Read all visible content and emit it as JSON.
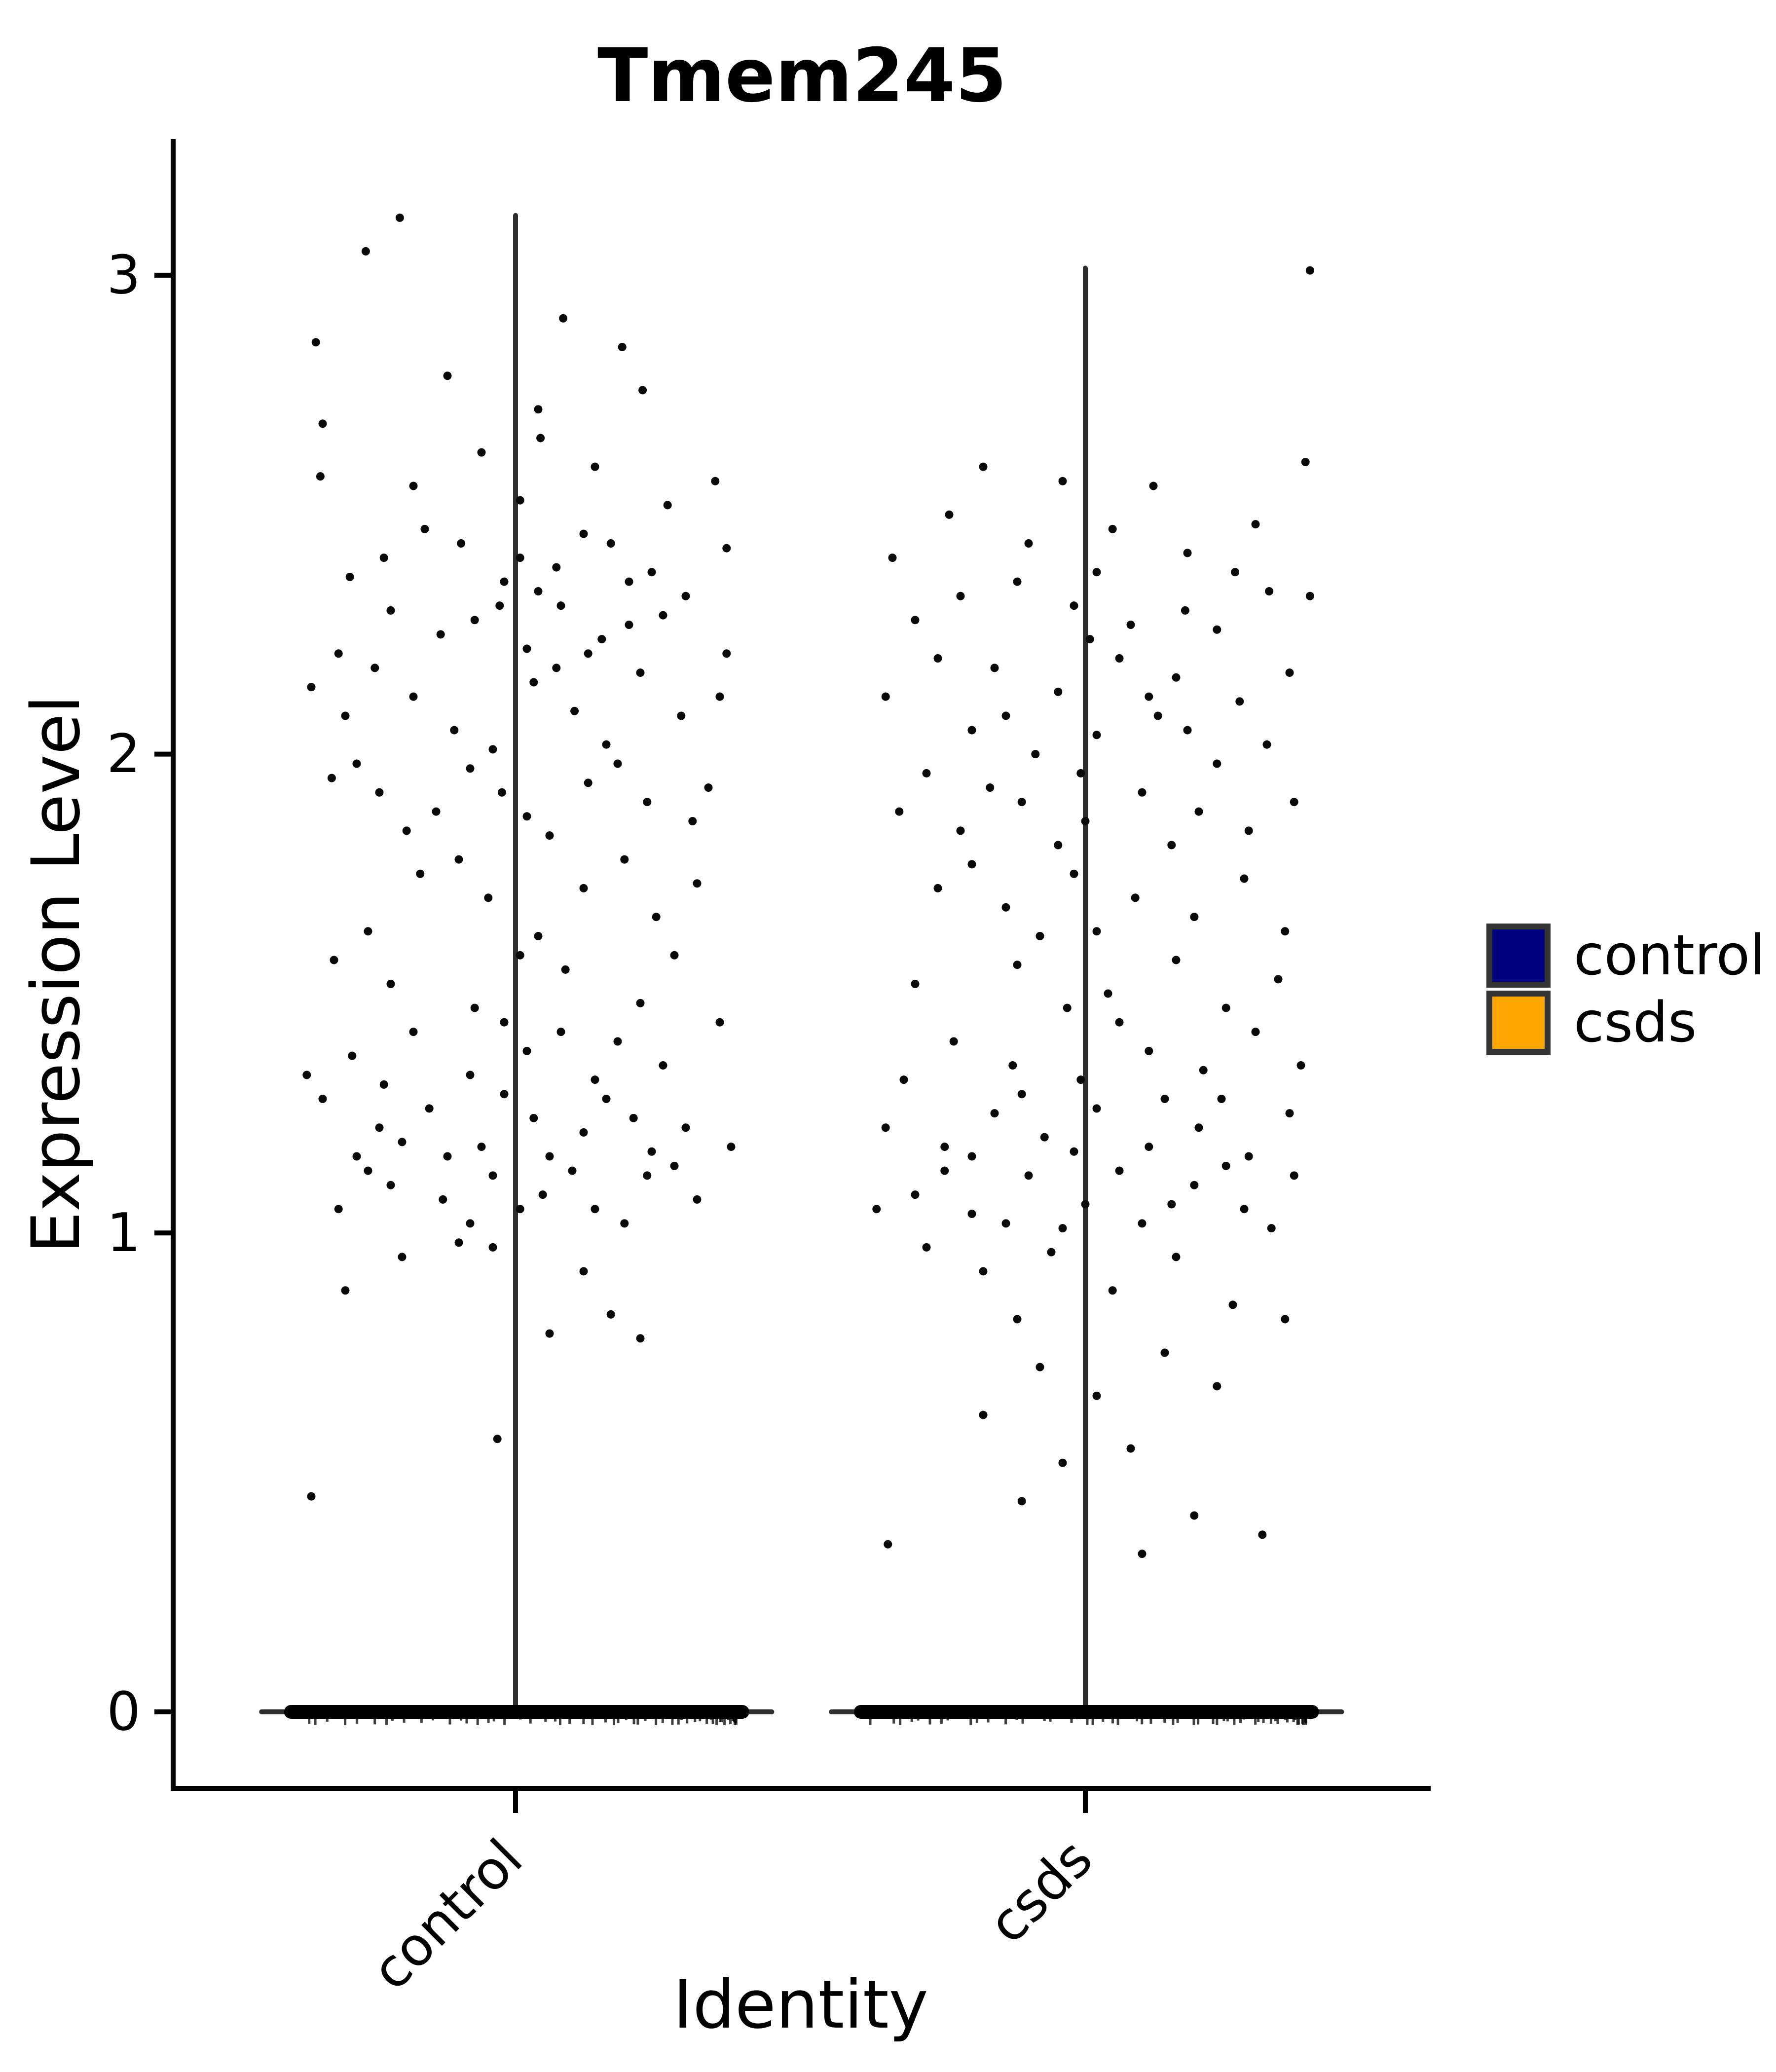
{
  "title": "Tmem245",
  "axes": {
    "x": {
      "label": "Identity",
      "categories": [
        "control",
        "csds"
      ]
    },
    "y": {
      "label": "Expression Level",
      "ticks": [
        0,
        1,
        2,
        3
      ],
      "range": [
        -0.16,
        3.27
      ]
    }
  },
  "legend": {
    "items": [
      {
        "label": "control",
        "color": "#000080"
      },
      {
        "label": "csds",
        "color": "#FFA500"
      }
    ],
    "swatch_border_color": "#333333"
  },
  "chart_data": {
    "type": "scatter",
    "subtype": "violin-jitter",
    "title": "Tmem245",
    "xlabel": "Identity",
    "ylabel": "Expression Level",
    "ylim": [
      -0.16,
      3.27
    ],
    "yticks": [
      0,
      1,
      2,
      3
    ],
    "categories": [
      "control",
      "csds"
    ],
    "point_color": "#0a0a0a",
    "violin_line_color": "#2e2e2e",
    "zero_band": {
      "y": 0,
      "thick_extent": [
        -1.02,
        1.03
      ],
      "thin_extent": [
        -1.13,
        1.14
      ],
      "note": "dense mass of overlapping cells with zero expression"
    },
    "groups": [
      {
        "name": "control",
        "violin_spike_top": 3.13,
        "points": [
          [
            -0.51,
            3.12
          ],
          [
            -0.66,
            3.05
          ],
          [
            0.21,
            2.91
          ],
          [
            -0.88,
            2.86
          ],
          [
            -0.3,
            2.79
          ],
          [
            0.47,
            2.85
          ],
          [
            -0.85,
            2.69
          ],
          [
            0.1,
            2.72
          ],
          [
            0.56,
            2.76
          ],
          [
            -0.86,
            2.58
          ],
          [
            -0.15,
            2.63
          ],
          [
            0.11,
            2.66
          ],
          [
            0.67,
            2.52
          ],
          [
            0.35,
            2.6
          ],
          [
            -0.45,
            2.56
          ],
          [
            0.02,
            2.53
          ],
          [
            0.88,
            2.57
          ],
          [
            -0.24,
            2.44
          ],
          [
            -0.58,
            2.41
          ],
          [
            0.02,
            2.41
          ],
          [
            -0.4,
            2.47
          ],
          [
            0.3,
            2.46
          ],
          [
            0.6,
            2.38
          ],
          [
            0.42,
            2.44
          ],
          [
            -0.05,
            2.36
          ],
          [
            0.18,
            2.39
          ],
          [
            -0.73,
            2.37
          ],
          [
            0.93,
            2.43
          ],
          [
            0.5,
            2.36
          ],
          [
            0.1,
            2.34
          ],
          [
            -0.07,
            2.31
          ],
          [
            0.2,
            2.31
          ],
          [
            0.5,
            2.27
          ],
          [
            -0.78,
            2.21
          ],
          [
            0.32,
            2.21
          ],
          [
            0.93,
            2.21
          ],
          [
            -0.33,
            2.25
          ],
          [
            0.65,
            2.29
          ],
          [
            -0.18,
            2.28
          ],
          [
            0.05,
            2.22
          ],
          [
            0.38,
            2.24
          ],
          [
            -0.55,
            2.3
          ],
          [
            0.75,
            2.33
          ],
          [
            -0.75,
            2.08
          ],
          [
            -0.27,
            2.05
          ],
          [
            0.26,
            2.09
          ],
          [
            0.73,
            2.08
          ],
          [
            -0.45,
            2.12
          ],
          [
            0.08,
            2.15
          ],
          [
            0.55,
            2.17
          ],
          [
            -0.62,
            2.18
          ],
          [
            0.4,
            2.02
          ],
          [
            -0.1,
            2.01
          ],
          [
            0.9,
            2.12
          ],
          [
            -0.9,
            2.14
          ],
          [
            0.18,
            2.18
          ],
          [
            -0.81,
            1.95
          ],
          [
            -0.6,
            1.92
          ],
          [
            -0.35,
            1.88
          ],
          [
            -0.06,
            1.92
          ],
          [
            0.32,
            1.94
          ],
          [
            0.58,
            1.9
          ],
          [
            0.15,
            1.83
          ],
          [
            -0.48,
            1.84
          ],
          [
            0.78,
            1.86
          ],
          [
            -0.2,
            1.97
          ],
          [
            0.45,
            1.98
          ],
          [
            0.05,
            1.87
          ],
          [
            -0.7,
            1.98
          ],
          [
            0.85,
            1.93
          ],
          [
            -0.42,
            1.75
          ],
          [
            -0.12,
            1.7
          ],
          [
            0.3,
            1.72
          ],
          [
            0.62,
            1.66
          ],
          [
            -0.65,
            1.63
          ],
          [
            0.1,
            1.62
          ],
          [
            -0.25,
            1.78
          ],
          [
            0.48,
            1.78
          ],
          [
            0.8,
            1.73
          ],
          [
            -0.55,
            1.52
          ],
          [
            -0.18,
            1.47
          ],
          [
            0.22,
            1.55
          ],
          [
            0.55,
            1.48
          ],
          [
            0.02,
            1.58
          ],
          [
            -0.8,
            1.57
          ],
          [
            0.7,
            1.58
          ],
          [
            -0.72,
            1.37
          ],
          [
            -0.45,
            1.42
          ],
          [
            -0.2,
            1.33
          ],
          [
            0.05,
            1.38
          ],
          [
            0.35,
            1.32
          ],
          [
            0.65,
            1.35
          ],
          [
            0.9,
            1.44
          ],
          [
            -0.05,
            1.44
          ],
          [
            0.2,
            1.42
          ],
          [
            -0.58,
            1.31
          ],
          [
            -0.92,
            1.33
          ],
          [
            0.45,
            1.4
          ],
          [
            -0.85,
            1.28
          ],
          [
            -0.6,
            1.22
          ],
          [
            -0.38,
            1.26
          ],
          [
            -0.15,
            1.18
          ],
          [
            0.08,
            1.24
          ],
          [
            0.3,
            1.21
          ],
          [
            0.52,
            1.24
          ],
          [
            0.75,
            1.22
          ],
          [
            0.95,
            1.18
          ],
          [
            -0.3,
            1.16
          ],
          [
            0.15,
            1.16
          ],
          [
            0.6,
            1.17
          ],
          [
            -0.05,
            1.29
          ],
          [
            0.4,
            1.28
          ],
          [
            -0.7,
            1.16
          ],
          [
            -0.5,
            1.19
          ],
          [
            -0.78,
            1.05
          ],
          [
            -0.55,
            1.1
          ],
          [
            -0.32,
            1.07
          ],
          [
            -0.1,
            1.12
          ],
          [
            0.12,
            1.08
          ],
          [
            0.35,
            1.05
          ],
          [
            0.58,
            1.12
          ],
          [
            0.8,
            1.07
          ],
          [
            0.25,
            1.13
          ],
          [
            -0.2,
            1.02
          ],
          [
            0.02,
            1.05
          ],
          [
            0.48,
            1.02
          ],
          [
            0.7,
            1.14
          ],
          [
            -0.65,
            1.13
          ],
          [
            -0.5,
            0.95
          ],
          [
            -0.25,
            0.98
          ],
          [
            0.3,
            0.92
          ],
          [
            -0.75,
            0.88
          ],
          [
            0.55,
            0.78
          ],
          [
            0.42,
            0.83
          ],
          [
            -0.1,
            0.97
          ],
          [
            0.15,
            0.79
          ],
          [
            -0.08,
            0.57
          ],
          [
            -0.9,
            0.45
          ]
        ]
      },
      {
        "name": "csds",
        "violin_spike_top": 3.02,
        "points": [
          [
            0.99,
            3.01
          ],
          [
            0.97,
            2.61
          ],
          [
            -0.45,
            2.6
          ],
          [
            -0.1,
            2.57
          ],
          [
            0.3,
            2.56
          ],
          [
            -0.6,
            2.5
          ],
          [
            0.12,
            2.47
          ],
          [
            0.45,
            2.42
          ],
          [
            -0.25,
            2.44
          ],
          [
            0.75,
            2.48
          ],
          [
            -0.85,
            2.41
          ],
          [
            0.66,
            2.38
          ],
          [
            0.81,
            2.34
          ],
          [
            0.99,
            2.33
          ],
          [
            0.44,
            2.3
          ],
          [
            -0.3,
            2.36
          ],
          [
            -0.05,
            2.31
          ],
          [
            0.2,
            2.27
          ],
          [
            -0.55,
            2.33
          ],
          [
            -0.75,
            2.28
          ],
          [
            0.58,
            2.26
          ],
          [
            0.05,
            2.38
          ],
          [
            -0.4,
            2.18
          ],
          [
            -0.12,
            2.13
          ],
          [
            0.15,
            2.2
          ],
          [
            0.4,
            2.16
          ],
          [
            0.68,
            2.11
          ],
          [
            -0.65,
            2.2
          ],
          [
            0.9,
            2.17
          ],
          [
            -0.88,
            2.12
          ],
          [
            0.02,
            2.24
          ],
          [
            0.28,
            2.12
          ],
          [
            -0.5,
            2.05
          ],
          [
            -0.22,
            2.0
          ],
          [
            0.05,
            2.04
          ],
          [
            0.32,
            2.08
          ],
          [
            0.58,
            1.98
          ],
          [
            0.8,
            2.02
          ],
          [
            -0.7,
            1.96
          ],
          [
            -0.02,
            1.96
          ],
          [
            0.45,
            2.05
          ],
          [
            -0.35,
            2.08
          ],
          [
            -0.82,
            1.88
          ],
          [
            -0.55,
            1.84
          ],
          [
            -0.28,
            1.9
          ],
          [
            0.0,
            1.86
          ],
          [
            0.25,
            1.92
          ],
          [
            0.5,
            1.88
          ],
          [
            0.72,
            1.84
          ],
          [
            0.92,
            1.9
          ],
          [
            -0.12,
            1.81
          ],
          [
            0.38,
            1.81
          ],
          [
            -0.42,
            1.93
          ],
          [
            -0.65,
            1.72
          ],
          [
            -0.35,
            1.68
          ],
          [
            -0.05,
            1.75
          ],
          [
            0.22,
            1.7
          ],
          [
            0.48,
            1.66
          ],
          [
            0.7,
            1.74
          ],
          [
            0.05,
            1.63
          ],
          [
            -0.2,
            1.62
          ],
          [
            0.88,
            1.63
          ],
          [
            -0.5,
            1.77
          ],
          [
            -0.75,
            1.52
          ],
          [
            -0.3,
            1.56
          ],
          [
            0.1,
            1.5
          ],
          [
            0.4,
            1.57
          ],
          [
            0.62,
            1.47
          ],
          [
            -0.08,
            1.47
          ],
          [
            0.85,
            1.53
          ],
          [
            -0.58,
            1.4
          ],
          [
            -0.32,
            1.35
          ],
          [
            -0.02,
            1.32
          ],
          [
            0.28,
            1.38
          ],
          [
            0.52,
            1.34
          ],
          [
            0.75,
            1.42
          ],
          [
            0.15,
            1.44
          ],
          [
            -0.8,
            1.32
          ],
          [
            0.95,
            1.35
          ],
          [
            -0.88,
            1.22
          ],
          [
            -0.62,
            1.18
          ],
          [
            -0.4,
            1.25
          ],
          [
            -0.18,
            1.2
          ],
          [
            0.05,
            1.26
          ],
          [
            0.28,
            1.18
          ],
          [
            0.5,
            1.22
          ],
          [
            0.72,
            1.16
          ],
          [
            0.9,
            1.25
          ],
          [
            -0.05,
            1.17
          ],
          [
            0.35,
            1.28
          ],
          [
            -0.28,
            1.29
          ],
          [
            0.6,
            1.28
          ],
          [
            -0.5,
            1.16
          ],
          [
            -0.75,
            1.08
          ],
          [
            -0.5,
            1.04
          ],
          [
            -0.25,
            1.12
          ],
          [
            0.0,
            1.06
          ],
          [
            0.25,
            1.02
          ],
          [
            0.48,
            1.1
          ],
          [
            0.7,
            1.05
          ],
          [
            0.92,
            1.12
          ],
          [
            -0.1,
            1.01
          ],
          [
            0.15,
            1.13
          ],
          [
            0.38,
            1.06
          ],
          [
            -0.35,
            1.02
          ],
          [
            0.62,
            1.14
          ],
          [
            -0.62,
            1.13
          ],
          [
            -0.92,
            1.05
          ],
          [
            0.82,
            1.01
          ],
          [
            -0.45,
            0.92
          ],
          [
            -0.15,
            0.96
          ],
          [
            0.12,
            0.88
          ],
          [
            0.4,
            0.95
          ],
          [
            0.65,
            0.85
          ],
          [
            -0.7,
            0.97
          ],
          [
            -0.3,
            0.82
          ],
          [
            0.88,
            0.82
          ],
          [
            -0.2,
            0.72
          ],
          [
            0.05,
            0.66
          ],
          [
            0.35,
            0.75
          ],
          [
            -0.45,
            0.62
          ],
          [
            0.58,
            0.68
          ],
          [
            -0.1,
            0.52
          ],
          [
            -0.28,
            0.44
          ],
          [
            0.2,
            0.55
          ],
          [
            0.48,
            0.41
          ],
          [
            -0.87,
            0.35
          ],
          [
            0.25,
            0.33
          ],
          [
            0.78,
            0.37
          ]
        ]
      }
    ]
  }
}
